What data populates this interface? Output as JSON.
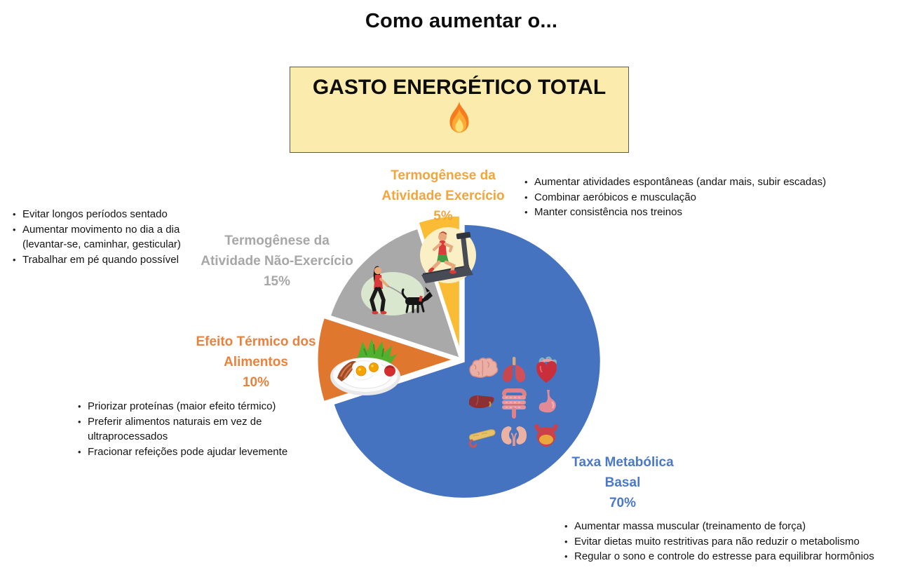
{
  "page_title": "Como aumentar o...",
  "banner": {
    "title": "GASTO ENERGÉTICO TOTAL",
    "icon": "fire-icon",
    "bg_color": "#FBECAE",
    "border_color": "#5A5A5A"
  },
  "chart_data": {
    "type": "pie",
    "title": "Como aumentar o... GASTO ENERGÉTICO TOTAL",
    "start_angle_deg": 0,
    "direction": "clockwise",
    "legend_position": "around-chart-callouts",
    "categories": [
      "Taxa Metabólica Basal",
      "Efeito Térmico dos Alimentos",
      "Termogênese da Atividade Não-Exercício",
      "Termogênese da Atividade Exercício"
    ],
    "values": [
      70,
      10,
      15,
      5
    ],
    "slices": [
      {
        "name": "Taxa Metabólica Basal",
        "label_lines": [
          "Taxa Metabólica",
          "Basal"
        ],
        "value_pct": 70,
        "pct_label": "70%",
        "color": "#4573BF",
        "label_color": "#4A79C9",
        "icon": "organs-grid-illustration",
        "tips": [
          "Aumentar massa muscular (treinamento de força)",
          "Evitar dietas muito restritivas para não reduzir o metabolismo",
          "Regular o sono e controle do estresse para equilibrar hormônios"
        ]
      },
      {
        "name": "Efeito Térmico dos Alimentos",
        "label_lines": [
          "Efeito Térmico dos",
          "Alimentos"
        ],
        "value_pct": 10,
        "pct_label": "10%",
        "color": "#E0772F",
        "label_color": "#E8823F",
        "icon": "breakfast-plate-illustration",
        "tips": [
          "Priorizar proteínas (maior efeito térmico)",
          "Preferir alimentos naturais em vez de ultraprocessados",
          "Fracionar refeições pode ajudar levemente"
        ]
      },
      {
        "name": "Termogênese da Atividade Não-Exercício",
        "label_lines": [
          "Termogênese da",
          "Atividade Não-Exercício"
        ],
        "value_pct": 15,
        "pct_label": "15%",
        "color": "#A9A9A9",
        "label_color": "#A7A7A7",
        "icon": "dog-walker-illustration",
        "tips": [
          "Evitar longos períodos sentado",
          "Aumentar movimento no dia a dia (levantar-se, caminhar, gesticular)",
          "Trabalhar em pé quando possível"
        ]
      },
      {
        "name": "Termogênese da Atividade Exercício",
        "label_lines": [
          "Termogênese da",
          "Atividade Exercício"
        ],
        "value_pct": 5,
        "pct_label": "5%",
        "color": "#FBBC35",
        "label_color": "#F1A53C",
        "icon": "treadmill-runner-illustration",
        "tips": [
          "Aumentar atividades espontâneas (andar mais, subir escadas)",
          "Combinar aeróbicos e musculação",
          "Manter consistência nos treinos"
        ]
      }
    ]
  }
}
